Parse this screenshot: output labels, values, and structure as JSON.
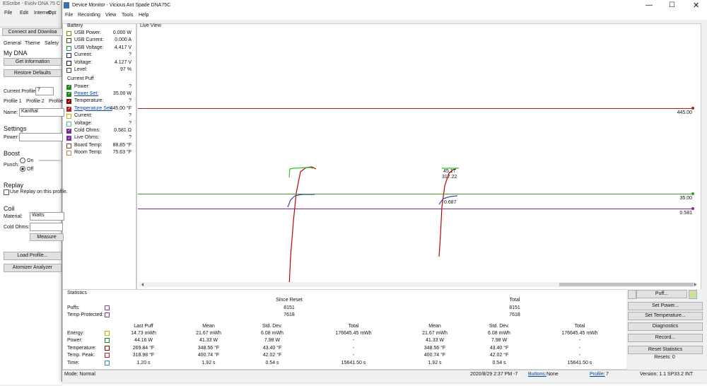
{
  "escribe": {
    "title": "EScribe - Evolv DNA 75 C",
    "menu": [
      "File",
      "Edit",
      "Internet",
      "Opt"
    ],
    "connect_button": "Connect and Downloa",
    "tabs": [
      "General",
      "Theme",
      "Safety"
    ],
    "my_dna": "My DNA",
    "get_information": "Get Information",
    "restore_defaults": "Restore Defaults",
    "current_profile_label": "Current Profile:",
    "current_profile_value": "7",
    "profile_tabs": [
      "Profile 1",
      "Profile 2",
      "Profile"
    ],
    "name_label": "Name:",
    "name_value": "Kanthal",
    "settings": "Settings",
    "power_label": "Power:",
    "boost": "Boost",
    "punch_label": "Punch:",
    "on": "On",
    "off": "Off",
    "replay": "Replay",
    "use_replay": "Use Replay on this profile.",
    "coil": "Coil",
    "material_label": "Material:",
    "material_value": "Watts",
    "cold_ohms_label": "Cold Ohms:",
    "measure": "Measure",
    "load_profile": "Load Profile...",
    "atomizer_analyzer": "Atomizer Analyzer"
  },
  "device_monitor": {
    "title": "Device Monitor - Vicious Ant Spade DNA75C",
    "menu": [
      "File",
      "Recording",
      "View",
      "Tools",
      "Help"
    ],
    "battery": {
      "heading": "Battery",
      "rows": [
        {
          "label": "USB Power:",
          "value": "0.000 W",
          "color": "#8a7d00",
          "checked": false,
          "link": false
        },
        {
          "label": "USB Current:",
          "value": "0.000 A",
          "color": "#1f5f1f",
          "checked": false,
          "link": false
        },
        {
          "label": "USB Voltage:",
          "value": "4.417 V",
          "color": "#2e8b57",
          "checked": false,
          "link": false
        },
        {
          "label": "Current:",
          "value": "?",
          "color": "#2a1a8a",
          "checked": false,
          "link": false
        },
        {
          "label": "Voltage:",
          "value": "4.127 V",
          "color": "#111111",
          "checked": false,
          "link": false
        },
        {
          "label": "Level:",
          "value": "97 %",
          "color": "#2f4f4f",
          "checked": false,
          "link": false
        }
      ]
    },
    "current_puff": {
      "heading": "Current Puff",
      "rows": [
        {
          "label": "Power:",
          "value": "?",
          "color": "#1a8a1a",
          "checked": true,
          "link": false
        },
        {
          "label": "Power Set:",
          "value": "35.00 W",
          "color": "#1a8a1a",
          "checked": true,
          "link": true
        },
        {
          "label": "Temperature:",
          "value": "?",
          "color": "#8b0000",
          "checked": true,
          "link": false
        },
        {
          "label": "Temperature Set:",
          "value": "445.00 °F",
          "color": "#b22222",
          "checked": true,
          "link": true
        },
        {
          "label": "Current:",
          "value": "?",
          "color": "#c8b400",
          "checked": false,
          "link": false
        },
        {
          "label": "Voltage:",
          "value": "?",
          "color": "#5fb3b3",
          "checked": false,
          "link": false
        },
        {
          "label": "Cold Ohms:",
          "value": "0.581 Ω",
          "color": "#7b2a9a",
          "checked": true,
          "link": false
        },
        {
          "label": "Live Ohms:",
          "value": "?",
          "color": "#7b2a9a",
          "checked": true,
          "link": false
        },
        {
          "label": "Board Temp:",
          "value": "88.85 °F",
          "color": "#8b4513",
          "checked": false,
          "link": false
        },
        {
          "label": "Room Temp:",
          "value": "75.63 °F",
          "color": "#b08860",
          "checked": false,
          "link": false
        }
      ]
    },
    "live_view": {
      "heading": "Live View",
      "lines": [
        {
          "label": "445.00",
          "color": "#b22222"
        },
        {
          "label": "35.00",
          "color": "#2ca02c"
        },
        {
          "label": "0.581",
          "color": "#7b2a9a"
        }
      ],
      "annotations": [
        "45.17",
        "317.22",
        "0.687"
      ]
    },
    "statistics": {
      "heading": "Statistics",
      "summary_headers": [
        "Since Reset",
        "Total"
      ],
      "summary_rows": [
        {
          "label": "Puffs:",
          "color": "#8b3a9a",
          "values": [
            "8151",
            "8151"
          ]
        },
        {
          "label": "Temp-Protected:",
          "color": "#8b3a9a",
          "values": [
            "7618",
            "7618"
          ]
        }
      ],
      "table_headers": [
        "Last Puff",
        "Mean",
        "Std. Dev.",
        "Total",
        "Mean",
        "Std. Dev.",
        "Total"
      ],
      "table_rows": [
        {
          "label": "Energy:",
          "color": "#c8b400",
          "values": [
            "14.73 mWh",
            "21.67 mWh",
            "6.08 mWh",
            "176645.45 mWh",
            "21.67 mWh",
            "6.08 mWh",
            "176645.45 mWh"
          ]
        },
        {
          "label": "Power:",
          "color": "#1a8a1a",
          "values": [
            "44.16 W",
            "41.33 W",
            "7.98 W",
            "-",
            "41.33 W",
            "7.98 W",
            "-"
          ]
        },
        {
          "label": "Temperature:",
          "color": "#8b0000",
          "values": [
            "269.84 °F",
            "348.56 °F",
            "43.40 °F",
            "-",
            "348.56 °F",
            "43.40 °F",
            "-"
          ]
        },
        {
          "label": "Temp. Peak:",
          "color": "#b22222",
          "values": [
            "318.98 °F",
            "400.74 °F",
            "42.02 °F",
            "-",
            "400.74 °F",
            "42.02 °F",
            "-"
          ]
        },
        {
          "label": "Time:",
          "color": "#3a7fc1",
          "values": [
            "1.20 s",
            "1.92 s",
            "0.54 s",
            "15641.50 s",
            "1.92 s",
            "0.54 s",
            "15641.50 s"
          ]
        }
      ]
    },
    "buttons": [
      "Puff...",
      "Set Power...",
      "Set Temperature...",
      "Diagnostics",
      "Record...",
      "Reset Statistics"
    ],
    "resets": "Resets: 0",
    "status": {
      "mode": "Mode: Normal",
      "datetime": "2020/8/29 2:37 PM -7",
      "buttons_label": "Buttons:",
      "buttons_value": "None",
      "profile_label": "Profile:",
      "profile_value": "7",
      "version": "Version: 1.1 SP33.2 INT"
    }
  }
}
